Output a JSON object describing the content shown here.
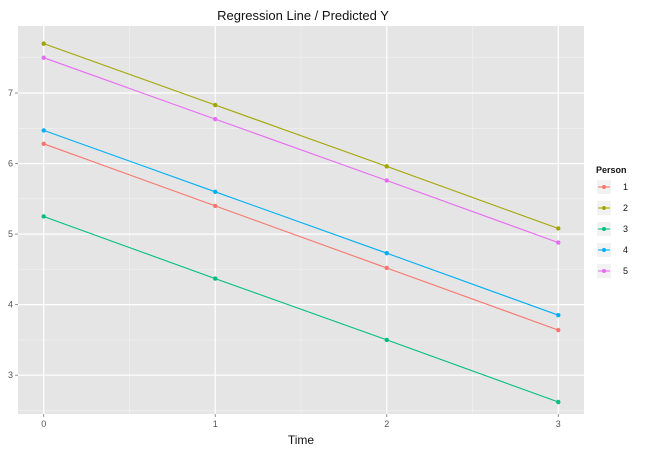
{
  "chart_data": {
    "type": "line",
    "title": "Regression Line / Predicted Y",
    "xlabel": "Time",
    "ylabel": "",
    "x": [
      0,
      1,
      2,
      3
    ],
    "xlim": [
      -0.15,
      3.15
    ],
    "ylim": [
      2.45,
      7.95
    ],
    "x_ticks": [
      "0",
      "1",
      "2",
      "3"
    ],
    "y_ticks": [
      "3",
      "4",
      "5",
      "6",
      "7"
    ],
    "grid": true,
    "legend": {
      "title": "Person",
      "placement": "right"
    },
    "series": [
      {
        "name": "1",
        "color": "#F8766D",
        "values": [
          6.28,
          5.4,
          4.52,
          3.64
        ]
      },
      {
        "name": "2",
        "color": "#A3A500",
        "values": [
          7.7,
          6.83,
          5.96,
          5.08
        ]
      },
      {
        "name": "3",
        "color": "#00BF7D",
        "values": [
          5.25,
          4.37,
          3.5,
          2.62
        ]
      },
      {
        "name": "4",
        "color": "#00B0F6",
        "values": [
          6.47,
          5.6,
          4.73,
          3.85
        ]
      },
      {
        "name": "5",
        "color": "#E76BF3",
        "values": [
          7.5,
          6.63,
          5.76,
          4.88
        ]
      }
    ],
    "panel_color": "#E5E5E5",
    "grid_color": "#FFFFFF"
  }
}
